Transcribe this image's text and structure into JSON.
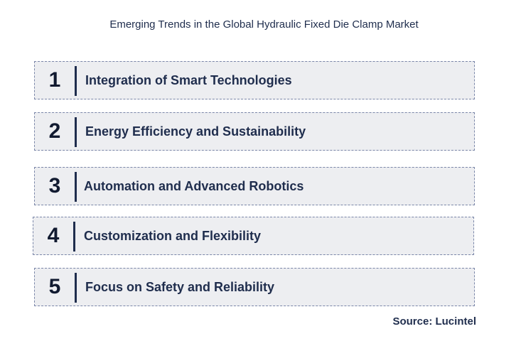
{
  "title": "Emerging Trends in the Global Hydraulic Fixed Die Clamp Market",
  "trends": [
    {
      "number": "1",
      "label": "Integration of Smart Technologies"
    },
    {
      "number": "2",
      "label": "Energy Efficiency and Sustainability"
    },
    {
      "number": "3",
      "label": "Automation and Advanced Robotics"
    },
    {
      "number": "4",
      "label": "Customization and Flexibility"
    },
    {
      "number": "5",
      "label": "Focus on Safety and Reliability"
    }
  ],
  "source": "Source: Lucintel",
  "colors": {
    "box_background": "#edeef1",
    "box_border": "#7a86a8",
    "text": "#1f2d4d"
  }
}
